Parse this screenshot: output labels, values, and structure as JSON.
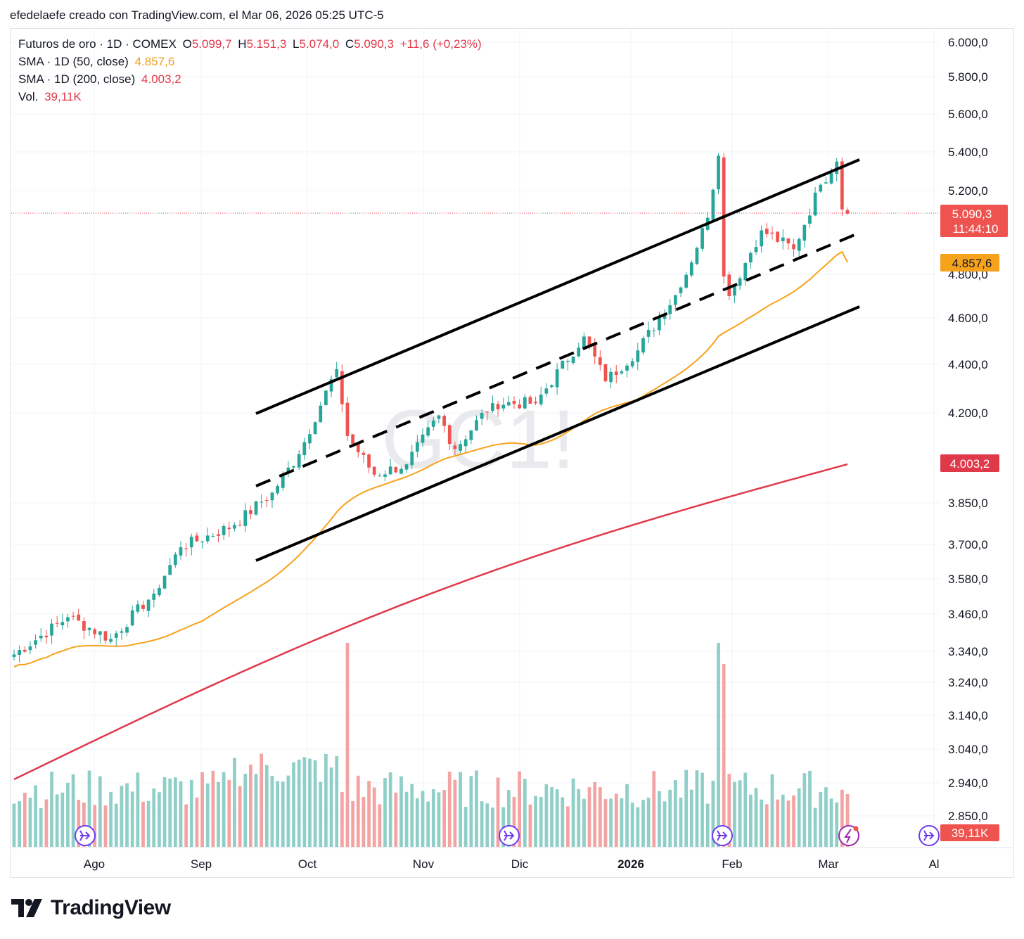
{
  "credit": "efedelaefe creado con TradingView.com, el Mar 06, 2026 05:25 UTC-5",
  "legend": {
    "symbol": "Futuros de oro · 1D · COMEX",
    "o_label": "O",
    "o_value": "5.099,7",
    "h_label": "H",
    "h_value": "5.151,3",
    "l_label": "L",
    "l_value": "5.074,0",
    "c_label": "C",
    "c_value": "5.090,3",
    "change": "+11,6 (+0,23%)",
    "sma50_label": "SMA · 1D (50, close)",
    "sma50_value": "4.857,6",
    "sma200_label": "SMA · 1D (200, close)",
    "sma200_value": "4.003,2",
    "vol_label": "Vol.",
    "vol_value": "39,11K"
  },
  "watermark": "GC1!",
  "badges": {
    "price": "5.090,3",
    "countdown": "11:44:10",
    "sma50": "4.857,6",
    "sma200": "4.003,2",
    "volume": "39,11K"
  },
  "logo_text": "TradingView",
  "colors": {
    "up": "#26a69a",
    "down": "#ef5350",
    "sma50": "#f7a21b",
    "sma200": "#e0394a",
    "vol_up": "#8fcfc7",
    "vol_down": "#f4a3a3",
    "channel": "#000000",
    "grid": "#f0f3fa"
  },
  "chart_data": {
    "type": "candlestick",
    "title": "Futuros de oro · 1D · COMEX",
    "symbol": "GC1!",
    "y_axis_labels": [
      "6.000,0",
      "5.800,0",
      "5.600,0",
      "5.400,0",
      "5.200,0",
      "4.800,0",
      "4.600,0",
      "4.400,0",
      "4.200,0",
      "3.850,0",
      "3.700,0",
      "3.580,0",
      "3.460,0",
      "3.340,0",
      "3.240,0",
      "3.140,0",
      "3.040,0",
      "2.940,0",
      "2.850,0"
    ],
    "x_axis_labels": [
      "Ago",
      "Sep",
      "Oct",
      "Nov",
      "Dic",
      "2026",
      "Feb",
      "Mar",
      "Al"
    ],
    "ylim": [
      2850,
      6000
    ],
    "last_price": 5090.3,
    "sma50_last": 4857.6,
    "sma200_last": 4003.2,
    "volume_last": "39,11K",
    "price_keypoints": [
      {
        "date": "Jul 25",
        "close": 3330
      },
      {
        "date": "Aug 08",
        "close": 3450
      },
      {
        "date": "Aug 20",
        "close": 3380
      },
      {
        "date": "Sep 01",
        "close": 3530
      },
      {
        "date": "Sep 08",
        "close": 3690
      },
      {
        "date": "Sep 22",
        "close": 3770
      },
      {
        "date": "Oct 01",
        "close": 3890
      },
      {
        "date": "Oct 08",
        "close": 4040
      },
      {
        "date": "Oct 17",
        "close": 4380
      },
      {
        "date": "Oct 21",
        "close": 4110
      },
      {
        "date": "Oct 28",
        "close": 3960
      },
      {
        "date": "Nov 05",
        "close": 4000
      },
      {
        "date": "Nov 13",
        "close": 4190
      },
      {
        "date": "Nov 18",
        "close": 4060
      },
      {
        "date": "Nov 28",
        "close": 4240
      },
      {
        "date": "Dec 10",
        "close": 4240
      },
      {
        "date": "Dec 23",
        "close": 4520
      },
      {
        "date": "Dec 30",
        "close": 4330
      },
      {
        "date": "Jan 08",
        "close": 4460
      },
      {
        "date": "Jan 20",
        "close": 4740
      },
      {
        "date": "Jan 27",
        "close": 5070
      },
      {
        "date": "Jan 29",
        "close": 5380
      },
      {
        "date": "Jan 30",
        "close": 4790
      },
      {
        "date": "Feb 02",
        "close": 4700
      },
      {
        "date": "Feb 10",
        "close": 5010
      },
      {
        "date": "Feb 18",
        "close": 4920
      },
      {
        "date": "Feb 25",
        "close": 5230
      },
      {
        "date": "Mar 02",
        "close": 5350
      },
      {
        "date": "Mar 03",
        "close": 5110
      },
      {
        "date": "Mar 06",
        "close": 5090
      }
    ],
    "annotations": [
      "Ascending channel upper line",
      "Ascending channel midline (dashed)",
      "Ascending channel lower line"
    ]
  }
}
